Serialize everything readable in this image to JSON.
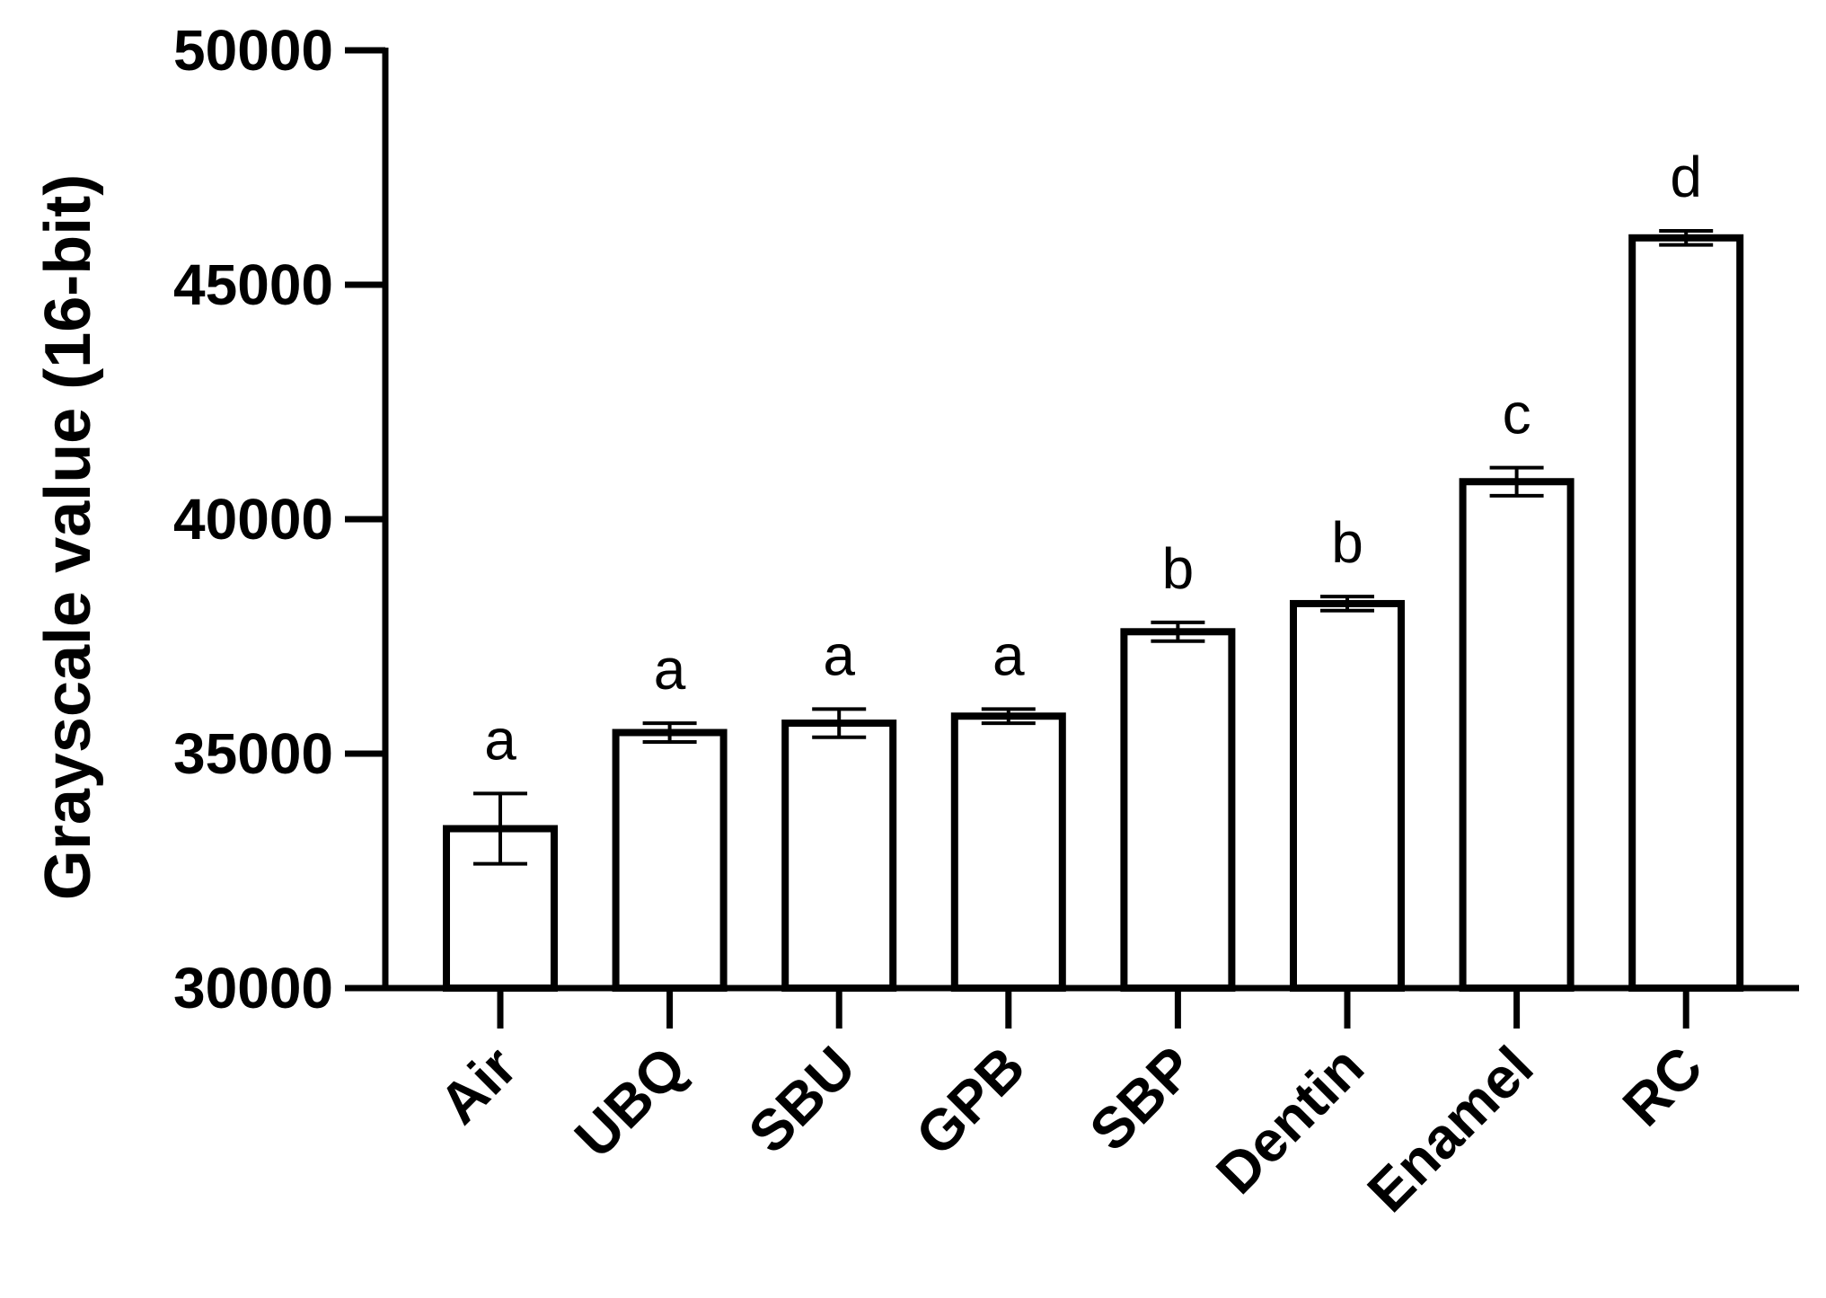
{
  "chart_data": {
    "type": "bar",
    "title": "",
    "xlabel": "",
    "ylabel": "Grayscale value (16-bit)",
    "ylim": [
      30000,
      50000
    ],
    "yticks": [
      "30000",
      "35000",
      "40000",
      "45000",
      "50000"
    ],
    "categories": [
      "Air",
      "UBQ",
      "SBU",
      "GPB",
      "SBP",
      "Dentin",
      "Enamel",
      "RC"
    ],
    "values": [
      33400,
      35450,
      35650,
      35800,
      37600,
      38200,
      40800,
      46000
    ],
    "errors": [
      750,
      200,
      300,
      150,
      200,
      150,
      300,
      150
    ],
    "significance": [
      "a",
      "a",
      "a",
      "a",
      "b",
      "b",
      "c",
      "d"
    ],
    "bar_fill": "#ffffff",
    "bar_stroke": "#000000",
    "grid": false,
    "legend": "none"
  }
}
